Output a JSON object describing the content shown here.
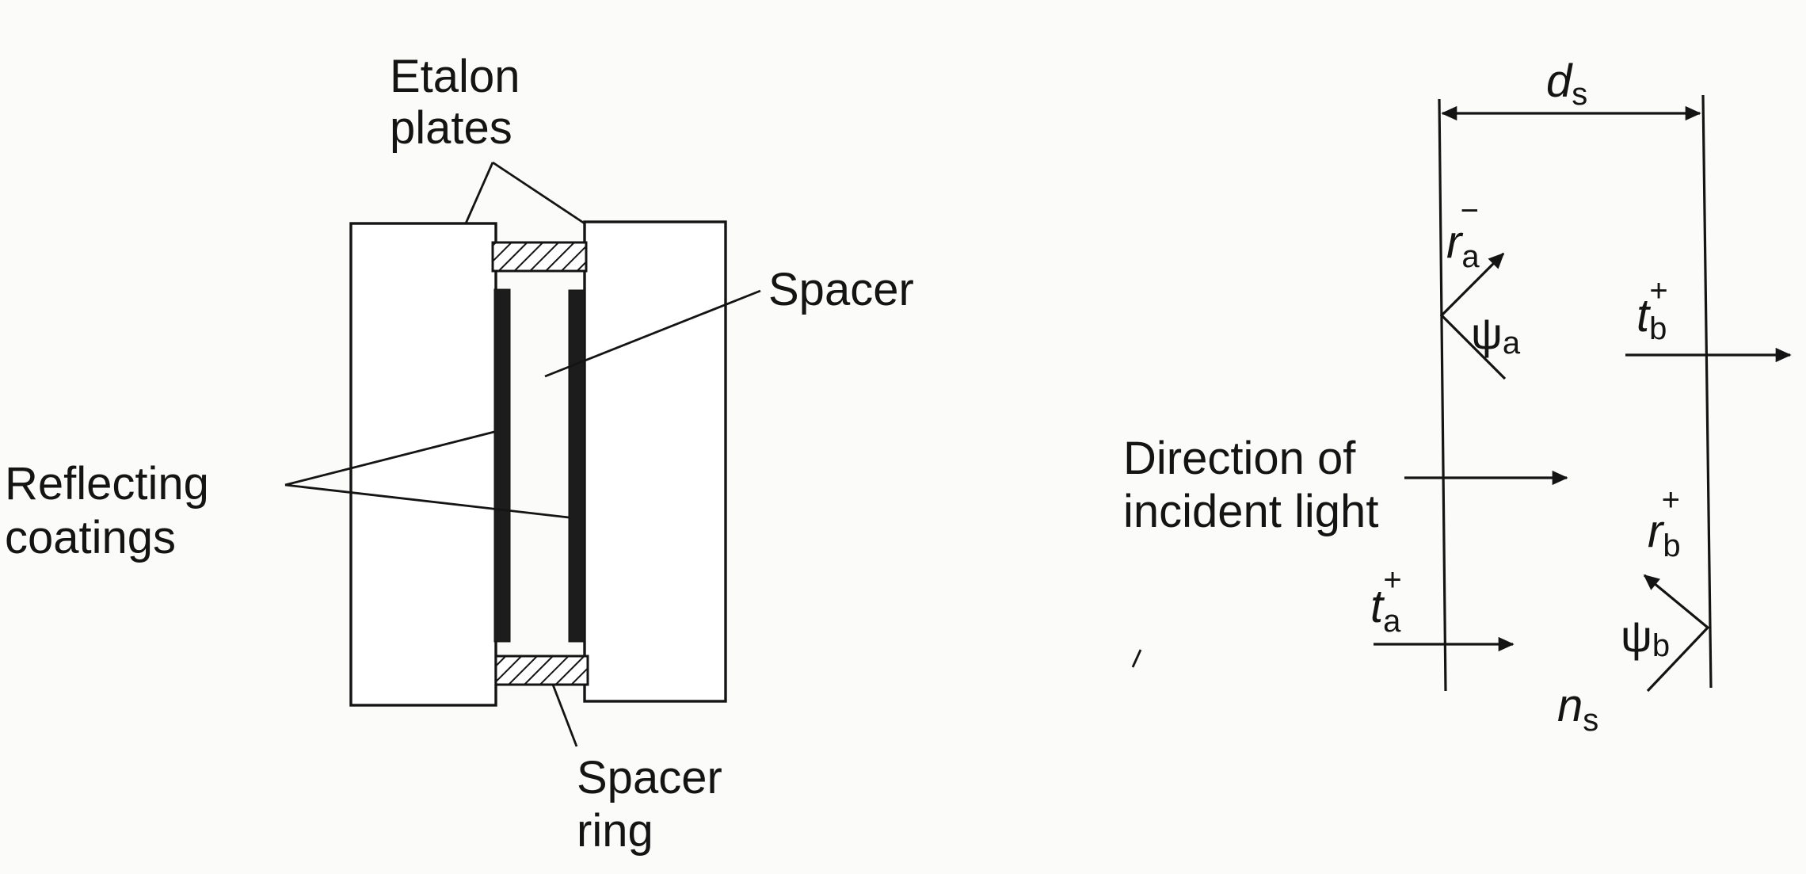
{
  "etalon": {
    "labels": {
      "etalon_plates_line1": "Etalon",
      "etalon_plates_line2": "plates",
      "spacer": "Spacer",
      "reflecting_line1": "Reflecting",
      "reflecting_line2": "coatings",
      "spacer_ring_line1": "Spacer",
      "spacer_ring_line2": "ring"
    }
  },
  "wave": {
    "thickness": {
      "symbol": "d",
      "sub": "s"
    },
    "index": {
      "symbol": "n",
      "sub": "s"
    },
    "r_a": {
      "symbol": "r",
      "sub": "a",
      "sup": "−"
    },
    "psi_a": {
      "symbol": "ψ",
      "sub": "a"
    },
    "t_b": {
      "symbol": "t",
      "sub": "b",
      "sup": "+"
    },
    "r_b": {
      "symbol": "r",
      "sub": "b",
      "sup": "+"
    },
    "psi_b": {
      "symbol": "ψ",
      "sub": "b"
    },
    "t_a": {
      "symbol": "t",
      "sub": "a",
      "sup": "+"
    },
    "direction_line1": "Direction of",
    "direction_line2": "incident light"
  }
}
